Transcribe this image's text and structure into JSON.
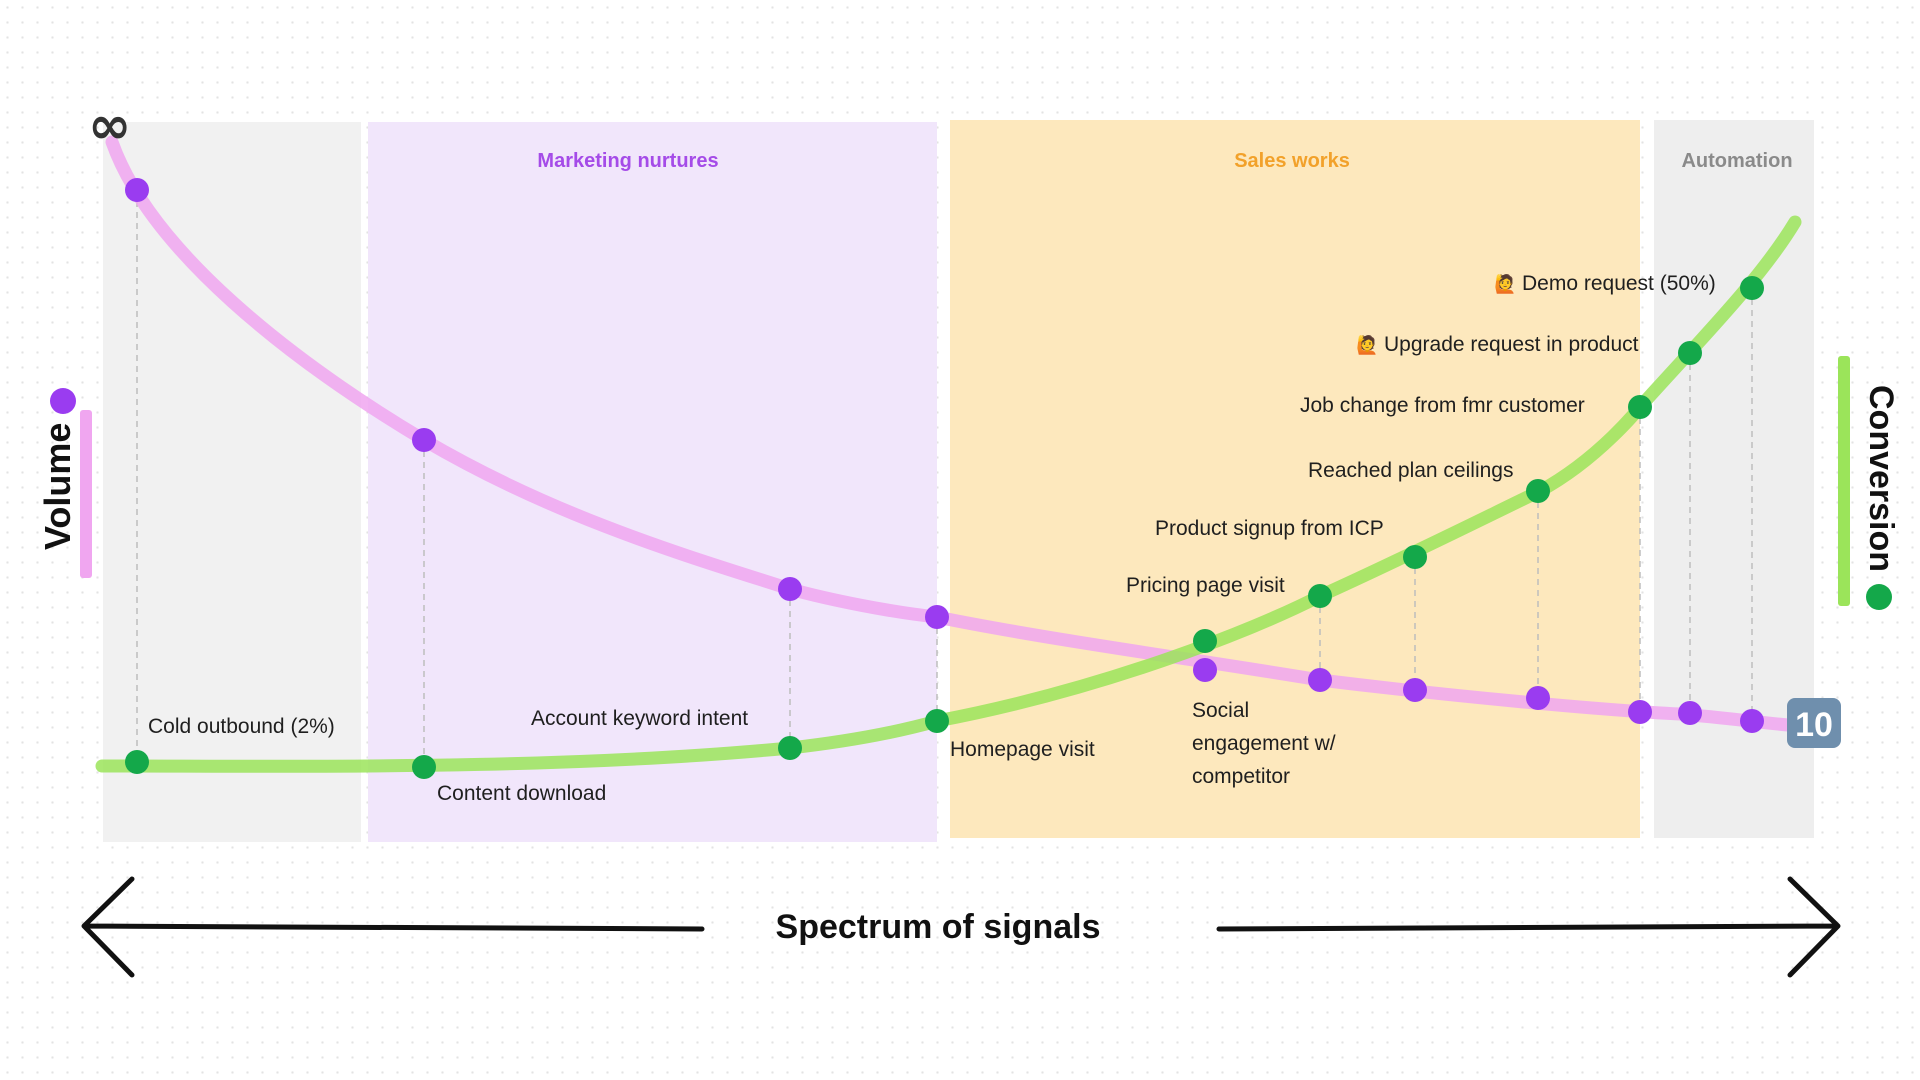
{
  "colors": {
    "volume": "#9a3cf0",
    "volume_line": "#f0a6f0",
    "conversion": "#14a84a",
    "conversion_line": "#9be45a",
    "zone_cold": "#f1f1f1",
    "zone_marketing": "#f1e6fb",
    "zone_sales": "#fde8bd",
    "zone_automation": "#eeeeee",
    "marketing_title": "#a54be8",
    "sales_title": "#f2a12a",
    "automation_title": "#8a8a8a"
  },
  "zones": {
    "marketing": "Marketing nurtures",
    "sales": "Sales works",
    "automation": "Automation"
  },
  "axes": {
    "left_title": "Volume",
    "right_title": "Conversion",
    "bottom_title": "Spectrum of signals",
    "infinity_symbol": "∞",
    "ten_badge": "10"
  },
  "signals": {
    "cold_outbound": "Cold outbound (2%)",
    "content_download": "Content download",
    "account_keyword_intent": "Account keyword intent",
    "homepage_visit": "Homepage visit",
    "social_line1": "Social",
    "social_line2": "engagement w/",
    "social_line3": "competitor",
    "pricing_page_visit": "Pricing page visit",
    "product_signup": "Product signup from ICP",
    "reached_plan_ceilings": "Reached plan ceilings",
    "job_change": "Job change from fmr customer",
    "upgrade_request": "Upgrade request in product",
    "demo_request": "Demo request (50%)"
  },
  "icons": {
    "raised_hand": "🙋",
    "volume_marker": "purple-dot",
    "conversion_marker": "green-dot"
  }
}
